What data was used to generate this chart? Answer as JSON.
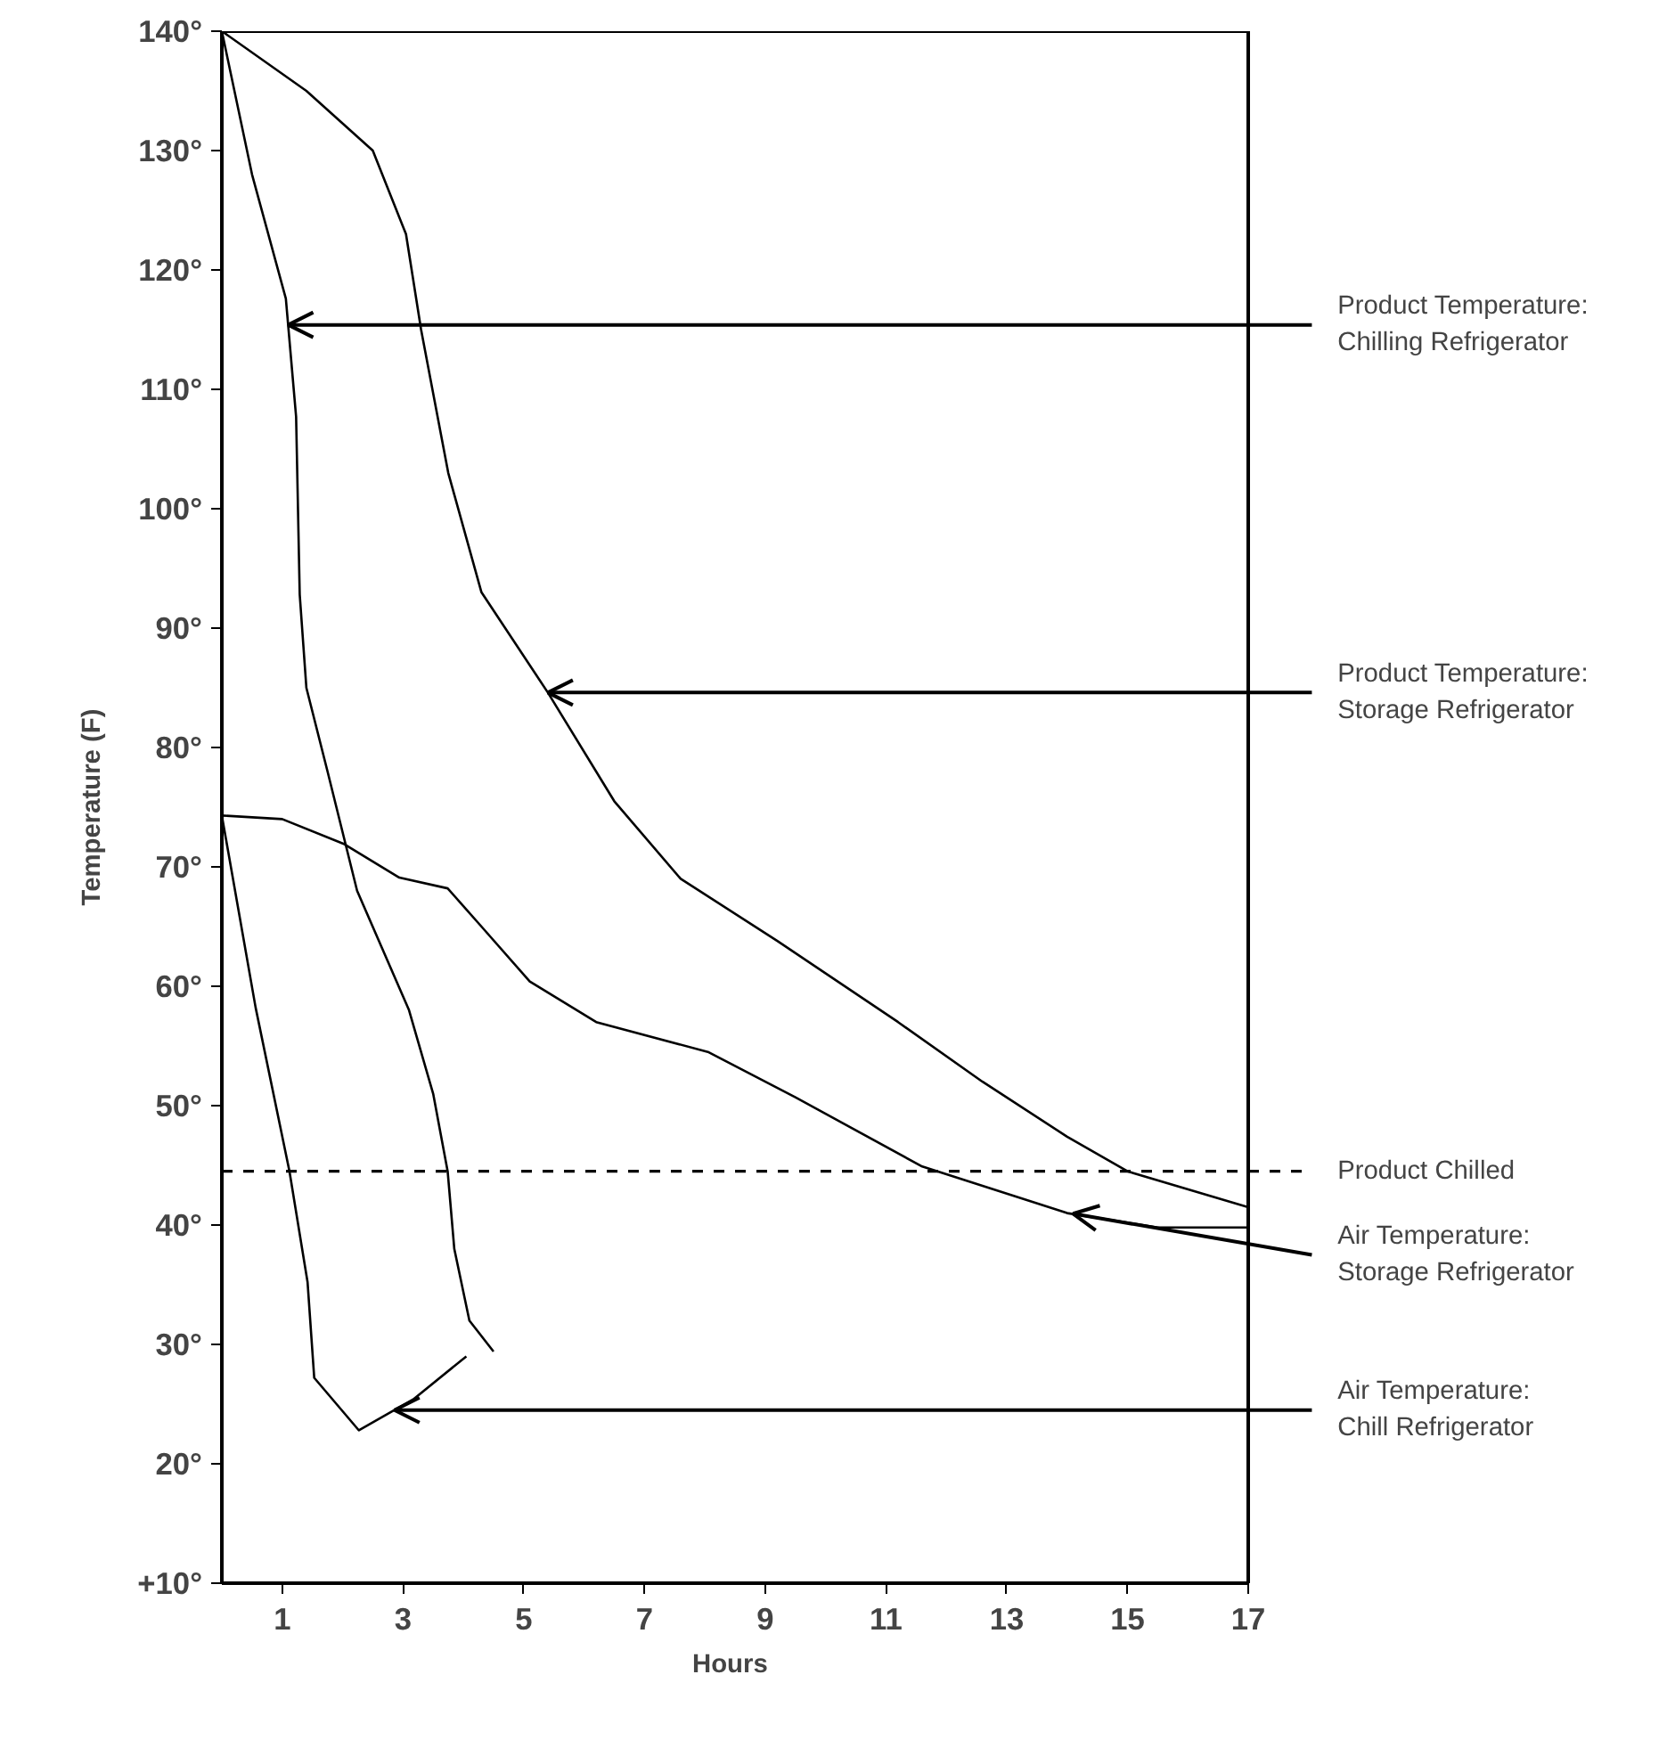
{
  "chart_data": {
    "type": "line",
    "xlabel": "Hours",
    "ylabel": "Temperature (F)",
    "xlim": [
      0,
      17
    ],
    "ylim": [
      10,
      140
    ],
    "xticks": [
      1,
      3,
      5,
      7,
      9,
      11,
      13,
      15,
      17
    ],
    "yticks": [
      {
        "value": 10,
        "label": "+10°"
      },
      {
        "value": 20,
        "label": "20°"
      },
      {
        "value": 30,
        "label": "30°"
      },
      {
        "value": 40,
        "label": "40°"
      },
      {
        "value": 50,
        "label": "50°"
      },
      {
        "value": 60,
        "label": "60°"
      },
      {
        "value": 70,
        "label": "70°"
      },
      {
        "value": 80,
        "label": "80°"
      },
      {
        "value": 90,
        "label": "90°"
      },
      {
        "value": 100,
        "label": "100°"
      },
      {
        "value": 110,
        "label": "110°"
      },
      {
        "value": 120,
        "label": "120°"
      },
      {
        "value": 130,
        "label": "130°"
      },
      {
        "value": 140,
        "label": "140°"
      }
    ],
    "grid": false,
    "marker": "none",
    "line_style": "solid",
    "series": [
      {
        "color": "#000000",
        "x": [
          0,
          0.5,
          1.06,
          1.23,
          1.29,
          1.4,
          1.75,
          2.24,
          3.1,
          3.5,
          3.74,
          3.85,
          4.1,
          4.5
        ],
        "values": [
          140,
          128,
          117.6,
          107.7,
          92.8,
          85,
          78,
          68,
          58,
          51,
          44.5,
          38,
          32,
          29.4
        ]
      },
      {
        "color": "#000000",
        "x": [
          0,
          1.4,
          2.5,
          3.05,
          3.3,
          3.75,
          4.3,
          5.4,
          6.5,
          7.6,
          9.2,
          11.2,
          12.6,
          14,
          15,
          17
        ],
        "values": [
          140,
          135,
          130,
          123,
          115,
          103,
          93,
          84.6,
          75.5,
          69,
          63.8,
          57,
          52,
          47.4,
          44.5,
          41.5
        ]
      },
      {
        "color": "#000000",
        "x": [
          0,
          1.0,
          2.03,
          2.94,
          3.74,
          4.3,
          5.1,
          6.2,
          8.05,
          9.5,
          11.6,
          14,
          15.5,
          17
        ],
        "values": [
          74.3,
          74,
          71.9,
          69.1,
          68.2,
          65,
          60.4,
          57,
          54.5,
          50.7,
          44.9,
          41,
          39.8,
          39.8
        ]
      },
      {
        "color": "#000000",
        "x": [
          0,
          0.56,
          1.12,
          1.42,
          1.53,
          2.27,
          3.17,
          4.05
        ],
        "values": [
          74.3,
          58.2,
          44.5,
          35.2,
          27.2,
          22.8,
          25.4,
          29
        ]
      }
    ],
    "ref_lines": [
      {
        "axis": "y",
        "value": 44.5,
        "label": "Product Chilled",
        "color": "#000000",
        "line_style": "dashed"
      }
    ],
    "annotations": [
      {
        "text": "Product Temperature:\nChilling Refrigerator",
        "x": 1.1,
        "y": 115.4
      },
      {
        "text": "Product Temperature:\nStorage Refrigerator",
        "x": 5.4,
        "y": 84.6
      },
      {
        "text": "Air Temperature:\nStorage Refrigerator",
        "x": 14.1,
        "y": 40.95
      },
      {
        "text": "Air Temperature:\nChill Refrigerator",
        "x": 2.86,
        "y": 24.5
      }
    ]
  }
}
